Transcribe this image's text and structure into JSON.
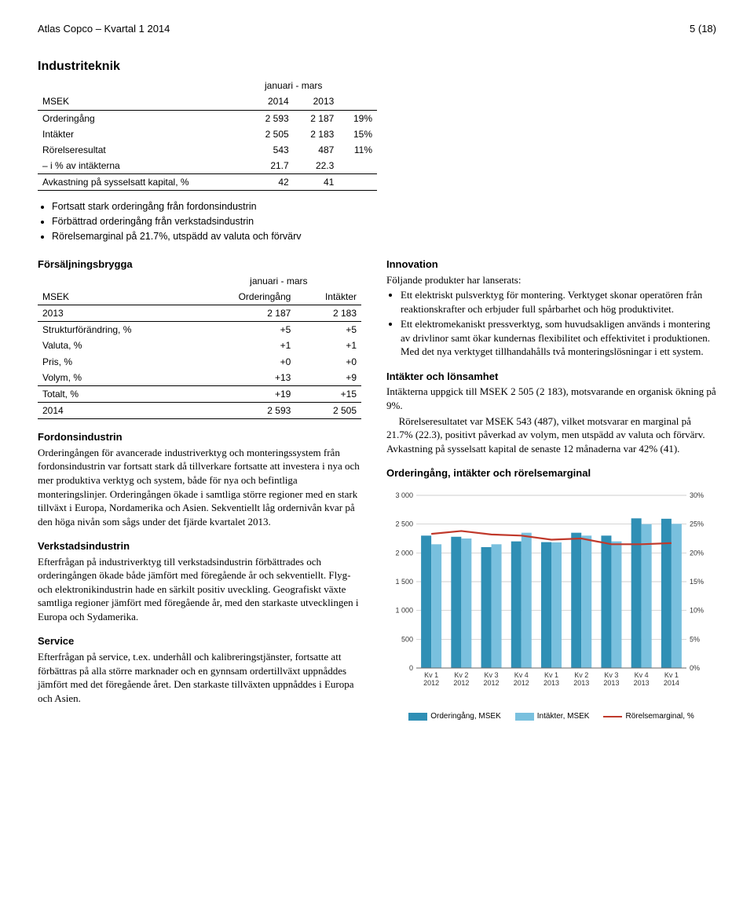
{
  "header": {
    "left": "Atlas Copco – Kvartal 1 2014",
    "right": "5 (18)"
  },
  "section_title": "Industriteknik",
  "fin_table": {
    "period": "januari - mars",
    "col_labels": [
      "MSEK",
      "2014",
      "2013",
      ""
    ],
    "rows": [
      {
        "cells": [
          "Orderingång",
          "2 593",
          "2 187",
          "19%"
        ],
        "sep": false
      },
      {
        "cells": [
          "Intäkter",
          "2 505",
          "2 183",
          "15%"
        ],
        "sep": false
      },
      {
        "cells": [
          "Rörelseresultat",
          "543",
          "487",
          "11%"
        ],
        "sep": false
      },
      {
        "cells": [
          "– i % av intäkterna",
          "21.7",
          "22.3",
          ""
        ],
        "sep": true
      },
      {
        "cells": [
          "Avkastning på sysselsatt kapital, %",
          "42",
          "41",
          ""
        ],
        "sep": true
      }
    ]
  },
  "bullets": [
    "Fortsatt stark orderingång från fordonsindustrin",
    "Förbättrad orderingång från verkstadsindustrin",
    "Rörelsemarginal på 21.7%, utspädd av valuta och förvärv"
  ],
  "bridge": {
    "title": "Försäljningsbrygga",
    "period": "januari - mars",
    "col_labels": [
      "MSEK",
      "Orderingång",
      "Intäkter"
    ],
    "rows": [
      {
        "cells": [
          "2013",
          "2 187",
          "2 183"
        ],
        "sep": true
      },
      {
        "cells": [
          "Strukturförändring, %",
          "+5",
          "+5"
        ],
        "sep": false
      },
      {
        "cells": [
          "Valuta, %",
          "+1",
          "+1"
        ],
        "sep": false
      },
      {
        "cells": [
          "Pris, %",
          "+0",
          "+0"
        ],
        "sep": false
      },
      {
        "cells": [
          "Volym, %",
          "+13",
          "+9"
        ],
        "sep": true
      },
      {
        "cells": [
          "Totalt, %",
          "+19",
          "+15"
        ],
        "sep": true
      },
      {
        "cells": [
          "2014",
          "2 593",
          "2 505"
        ],
        "sep": true
      }
    ]
  },
  "left_sections": [
    {
      "title": "Fordonsindustrin",
      "body": "Orderingången för avancerade industriverktyg och monteringssystem från fordonsindustrin var fortsatt stark då tillverkare fortsatte att investera i nya och mer produktiva verktyg och system, både för nya och befintliga monteringslinjer. Orderingången ökade i samtliga större regioner med en stark tillväxt i Europa, Nordamerika och Asien. Sekventiellt låg ordernivån kvar på den höga nivån som sågs under det fjärde kvartalet 2013."
    },
    {
      "title": "Verkstadsindustrin",
      "body": "Efterfrågan på industriverktyg till verkstadsindustrin förbättrades och orderingången ökade både jämfört med föregående år och sekventiellt. Flyg- och elektronikindustrin hade en särkilt positiv uveckling. Geografiskt växte samtliga regioner jämfört med föregående år, med den starkaste utvecklingen i Europa och Sydamerika."
    },
    {
      "title": "Service",
      "body": "Efterfrågan på service, t.ex. underhåll och kalibreringstjänster, fortsatte att förbättras på alla större marknader och en gynnsam ordertillväxt uppnåddes jämfört med det föregående året. Den starkaste tillväxten uppnåddes i Europa och Asien."
    }
  ],
  "innovation": {
    "title": "Innovation",
    "intro": "Följande produkter har lanserats:",
    "items": [
      "Ett elektriskt pulsverktyg för montering. Verktyget skonar operatören från reaktionskrafter och erbjuder full spårbarhet och hög produktivitet.",
      "Ett elektromekaniskt pressverktyg, som huvudsakligen används i montering av drivlinor samt ökar kundernas flexibilitet och effektivitet i produktionen. Med det nya verktyget tillhandahålls två monteringslösningar i ett system."
    ]
  },
  "profit": {
    "title": "Intäkter och lönsamhet",
    "p1": "Intäkterna uppgick till MSEK 2 505 (2 183), motsvarande en organisk ökning på 9%.",
    "p2": "Rörelseresultatet var MSEK 543 (487), vilket motsvarar en marginal på 21.7% (22.3), positivt påverkad av volym, men utspädd av valuta och förvärv. Avkastning på sysselsatt kapital de senaste 12 månaderna var 42% (41)."
  },
  "chart": {
    "title": "Orderingång, intäkter och rörelsemarginal",
    "type": "bar+line",
    "categories": [
      "Kv 1\n2012",
      "Kv 2\n2012",
      "Kv 3\n2012",
      "Kv 4\n2012",
      "Kv 1\n2013",
      "Kv 2\n2013",
      "Kv 3\n2013",
      "Kv 4\n2013",
      "Kv 1\n2014"
    ],
    "series": {
      "orderingang": {
        "label": "Orderingång, MSEK",
        "color": "#2f8fb5",
        "values": [
          2300,
          2280,
          2100,
          2200,
          2187,
          2350,
          2300,
          2600,
          2593
        ]
      },
      "intakter": {
        "label": "Intäkter, MSEK",
        "color": "#79c0de",
        "values": [
          2150,
          2250,
          2150,
          2350,
          2183,
          2300,
          2200,
          2500,
          2505
        ]
      },
      "margin": {
        "label": "Rörelsemarginal, %",
        "color": "#c0392b",
        "values": [
          23.3,
          23.8,
          23.2,
          23.0,
          22.3,
          22.5,
          21.5,
          21.5,
          21.7
        ]
      }
    },
    "y_left": {
      "min": 0,
      "max": 3000,
      "step": 500,
      "unit": ""
    },
    "y_right": {
      "min": 0,
      "max": 30,
      "step": 5,
      "unit": "%"
    },
    "background": "#ffffff",
    "grid_color": "#bdbdbd",
    "axis_color": "#666666",
    "label_font": "Arial",
    "label_fontsize": 9,
    "bar_group_width": 0.68
  }
}
